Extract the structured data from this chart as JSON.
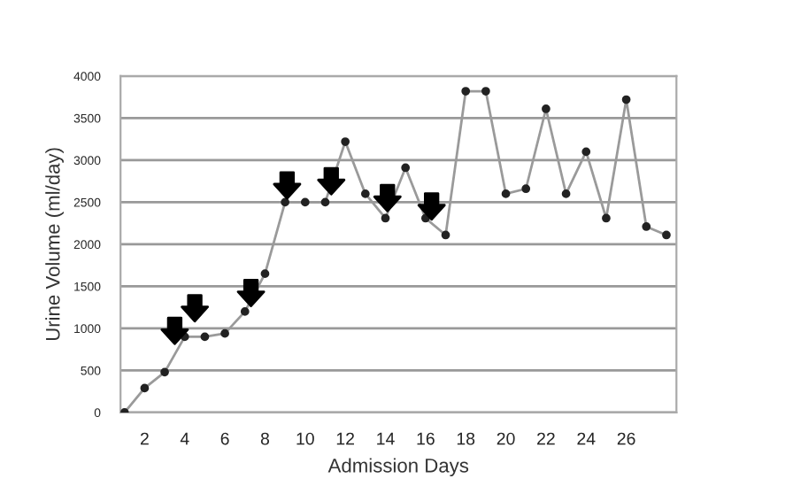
{
  "chart_data": {
    "type": "line",
    "xlabel": "Admission Days",
    "ylabel": "Urine Volume (ml/day)",
    "xlim": [
      0.8,
      28.5
    ],
    "xticks": [
      2,
      4,
      6,
      8,
      10,
      12,
      14,
      16,
      18,
      20,
      22,
      24,
      26
    ],
    "ylim": [
      0,
      4000
    ],
    "yticks": [
      0,
      500,
      1000,
      1500,
      2000,
      2500,
      3000,
      3500,
      4000
    ],
    "grid": "y",
    "marker": "circle",
    "line_style": "solid",
    "series": [
      {
        "color": "#9a9a9a",
        "x": [
          1,
          2,
          3,
          4,
          5,
          6,
          7,
          8,
          9,
          10,
          11,
          12,
          13,
          14,
          15,
          16,
          17,
          18,
          19,
          20,
          21,
          22,
          23,
          24,
          25,
          26,
          27,
          28
        ],
        "values": [
          0,
          290,
          480,
          900,
          900,
          940,
          1200,
          1650,
          2500,
          2500,
          2500,
          3220,
          2600,
          2310,
          2910,
          2310,
          2110,
          3820,
          3820,
          2600,
          2660,
          3610,
          2600,
          3100,
          2310,
          3720,
          2210,
          2110
        ]
      },
      {
        "type": "scatter",
        "marker": "triangle",
        "color": "#000000",
        "x": [
          3.5,
          4.5,
          7.3,
          9.1,
          11.3,
          14.1,
          16.3
        ],
        "values": [
          970,
          1240,
          1420,
          2700,
          2750,
          2550,
          2450
        ]
      }
    ]
  }
}
